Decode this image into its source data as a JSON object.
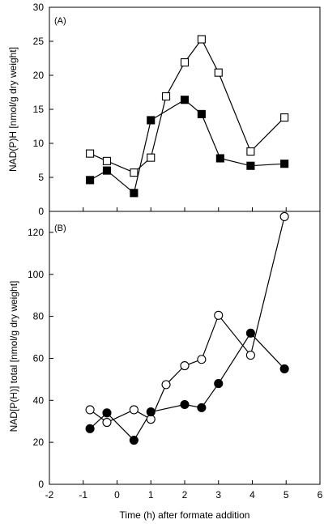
{
  "chart_data": [
    {
      "type": "line",
      "panel_label": "(A)",
      "ylabel": "NAD(P)H [nmol/g dry weight]",
      "xlabel": "",
      "xlim": [
        -2,
        6
      ],
      "ylim": [
        0,
        30
      ],
      "yticks": [
        0,
        5,
        10,
        15,
        20,
        25,
        30
      ],
      "xticks": [],
      "grid": false,
      "series": [
        {
          "marker": "open-square",
          "x": [
            -0.8,
            -0.3,
            0.5,
            1.0,
            1.45,
            2.0,
            2.5,
            3.0,
            3.95,
            4.95
          ],
          "y": [
            8.5,
            7.4,
            5.7,
            7.9,
            16.9,
            21.9,
            25.3,
            20.4,
            8.8,
            13.8
          ]
        },
        {
          "marker": "filled-square",
          "x": [
            -0.8,
            -0.3,
            0.5,
            1.0,
            2.0,
            2.5,
            3.05,
            3.95,
            4.95
          ],
          "y": [
            4.6,
            6.0,
            2.7,
            13.4,
            16.4,
            14.3,
            7.8,
            6.7,
            7.0
          ]
        }
      ]
    },
    {
      "type": "line",
      "panel_label": "(B)",
      "ylabel": "NAD[P(H)] total [nmol/g dry weight]",
      "xlabel": "Time (h) after formate addition",
      "xlim": [
        -2,
        6
      ],
      "ylim": [
        0,
        130
      ],
      "yticks": [
        0,
        20,
        40,
        60,
        80,
        100,
        120
      ],
      "xticks": [
        -2,
        -1,
        0,
        1,
        2,
        3,
        4,
        5,
        6
      ],
      "grid": false,
      "series": [
        {
          "marker": "open-circle",
          "x": [
            -0.8,
            -0.3,
            0.5,
            1.0,
            1.45,
            2.0,
            2.5,
            3.0,
            3.95,
            4.95
          ],
          "y": [
            35.5,
            29.5,
            35.5,
            31.0,
            47.5,
            56.5,
            59.5,
            80.5,
            61.5,
            127.5
          ]
        },
        {
          "marker": "filled-circle",
          "x": [
            -0.8,
            -0.3,
            0.5,
            1.0,
            2.0,
            2.5,
            3.0,
            3.95,
            4.95
          ],
          "y": [
            26.5,
            34.0,
            21.0,
            34.5,
            38.0,
            36.5,
            48.0,
            72.0,
            55.0
          ]
        }
      ]
    }
  ]
}
